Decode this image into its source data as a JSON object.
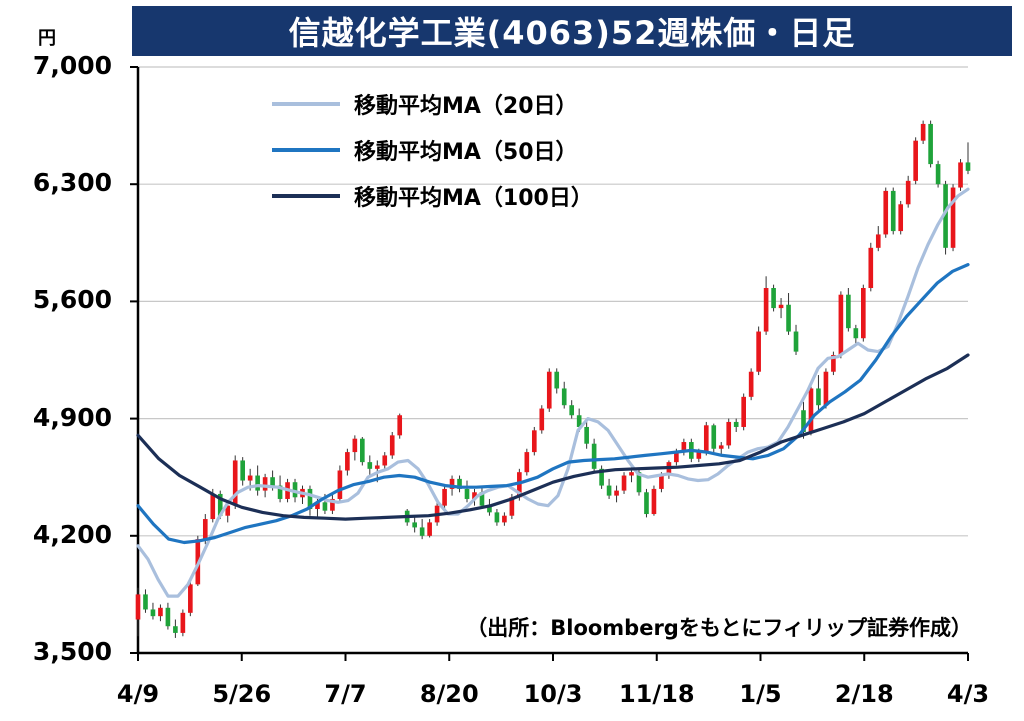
{
  "chart_data": {
    "type": "line",
    "title": "信越化学工業(4063)52週株価・日足",
    "unit_label": "円",
    "source_note": "（出所：Bloombergをもとにフィリップ証券作成）",
    "ylim": [
      3500,
      7000
    ],
    "y_ticks": [
      "3,500",
      "4,200",
      "4,900",
      "5,600",
      "6,300",
      "7,000"
    ],
    "y_tick_values": [
      3500,
      4200,
      4900,
      5600,
      6300,
      7000
    ],
    "grid": true,
    "legend_position": "top-left",
    "x_tick_labels": [
      "4/9",
      "5/26",
      "7/7",
      "8/20",
      "10/3",
      "11/18",
      "1/5",
      "2/18",
      "4/3"
    ],
    "candle_colors": {
      "up": "#e8161b",
      "down": "#1fa33a"
    },
    "candles": [
      [
        3700,
        3890,
        3600,
        3850
      ],
      [
        3850,
        3880,
        3740,
        3760
      ],
      [
        3760,
        3800,
        3700,
        3720
      ],
      [
        3720,
        3790,
        3690,
        3770
      ],
      [
        3770,
        3800,
        3640,
        3660
      ],
      [
        3660,
        3700,
        3590,
        3620
      ],
      [
        3620,
        3760,
        3600,
        3740
      ],
      [
        3740,
        3940,
        3720,
        3910
      ],
      [
        3910,
        4200,
        3900,
        4180
      ],
      [
        4180,
        4330,
        4150,
        4300
      ],
      [
        4300,
        4480,
        4280,
        4450
      ],
      [
        4450,
        4470,
        4300,
        4320
      ],
      [
        4320,
        4400,
        4280,
        4380
      ],
      [
        4380,
        4680,
        4360,
        4650
      ],
      [
        4650,
        4670,
        4500,
        4530
      ],
      [
        4530,
        4600,
        4470,
        4560
      ],
      [
        4560,
        4620,
        4440,
        4470
      ],
      [
        4470,
        4570,
        4430,
        4550
      ],
      [
        4550,
        4590,
        4470,
        4500
      ],
      [
        4500,
        4560,
        4400,
        4420
      ],
      [
        4420,
        4540,
        4400,
        4520
      ],
      [
        4520,
        4540,
        4400,
        4430
      ],
      [
        4430,
        4500,
        4390,
        4480
      ],
      [
        4480,
        4500,
        4320,
        4360
      ],
      [
        4360,
        4420,
        4300,
        4400
      ],
      [
        4400,
        4450,
        4330,
        4350
      ],
      [
        4350,
        4450,
        4330,
        4420
      ],
      [
        4420,
        4620,
        4400,
        4590
      ],
      [
        4590,
        4720,
        4560,
        4700
      ],
      [
        4700,
        4800,
        4650,
        4780
      ],
      [
        4780,
        4790,
        4620,
        4640
      ],
      [
        4640,
        4680,
        4550,
        4600
      ],
      [
        4600,
        4650,
        4520,
        4620
      ],
      [
        4620,
        4700,
        4600,
        4680
      ],
      [
        4680,
        4820,
        4660,
        4800
      ],
      [
        4800,
        4930,
        4780,
        4920
      ],
      [
        4350,
        4360,
        4260,
        4280
      ],
      [
        4280,
        4320,
        4220,
        4250
      ],
      [
        4250,
        4300,
        4180,
        4200
      ],
      [
        4200,
        4300,
        4190,
        4280
      ],
      [
        4280,
        4400,
        4260,
        4380
      ],
      [
        4380,
        4500,
        4360,
        4480
      ],
      [
        4480,
        4560,
        4440,
        4540
      ],
      [
        4540,
        4560,
        4460,
        4480
      ],
      [
        4480,
        4530,
        4400,
        4420
      ],
      [
        4420,
        4480,
        4380,
        4460
      ],
      [
        4460,
        4500,
        4360,
        4380
      ],
      [
        4380,
        4420,
        4320,
        4340
      ],
      [
        4340,
        4360,
        4260,
        4280
      ],
      [
        4280,
        4340,
        4260,
        4320
      ],
      [
        4320,
        4450,
        4300,
        4430
      ],
      [
        4430,
        4600,
        4410,
        4580
      ],
      [
        4580,
        4720,
        4560,
        4700
      ],
      [
        4700,
        4850,
        4680,
        4830
      ],
      [
        4830,
        4980,
        4810,
        4960
      ],
      [
        4960,
        5200,
        4940,
        5180
      ],
      [
        5180,
        5200,
        5050,
        5080
      ],
      [
        5080,
        5120,
        4960,
        4980
      ],
      [
        4980,
        5010,
        4900,
        4920
      ],
      [
        4920,
        4960,
        4820,
        4850
      ],
      [
        4850,
        4880,
        4720,
        4750
      ],
      [
        4750,
        4780,
        4580,
        4600
      ],
      [
        4600,
        4620,
        4480,
        4500
      ],
      [
        4500,
        4540,
        4420,
        4440
      ],
      [
        4440,
        4500,
        4400,
        4470
      ],
      [
        4470,
        4580,
        4450,
        4560
      ],
      [
        4560,
        4620,
        4520,
        4580
      ],
      [
        4580,
        4600,
        4440,
        4460
      ],
      [
        4460,
        4480,
        4310,
        4330
      ],
      [
        4330,
        4500,
        4320,
        4480
      ],
      [
        4480,
        4580,
        4460,
        4560
      ],
      [
        4560,
        4650,
        4540,
        4640
      ],
      [
        4640,
        4720,
        4620,
        4700
      ],
      [
        4700,
        4780,
        4680,
        4760
      ],
      [
        4760,
        4780,
        4640,
        4660
      ],
      [
        4660,
        4720,
        4640,
        4700
      ],
      [
        4700,
        4880,
        4680,
        4860
      ],
      [
        4860,
        4870,
        4700,
        4720
      ],
      [
        4720,
        4760,
        4680,
        4740
      ],
      [
        4740,
        4900,
        4720,
        4880
      ],
      [
        4880,
        4900,
        4820,
        4850
      ],
      [
        4850,
        5050,
        4830,
        5030
      ],
      [
        5030,
        5200,
        5010,
        5180
      ],
      [
        5180,
        5450,
        5160,
        5420
      ],
      [
        5420,
        5750,
        5400,
        5680
      ],
      [
        5680,
        5700,
        5540,
        5560
      ],
      [
        5560,
        5620,
        5500,
        5580
      ],
      [
        5580,
        5650,
        5400,
        5420
      ],
      [
        5420,
        5460,
        5280,
        5300
      ],
      [
        4950,
        5000,
        4780,
        4820
      ],
      [
        4820,
        5100,
        4800,
        5080
      ],
      [
        5080,
        5160,
        4950,
        4980
      ],
      [
        4980,
        5200,
        4960,
        5180
      ],
      [
        5180,
        5300,
        5160,
        5280
      ],
      [
        5280,
        5660,
        5260,
        5640
      ],
      [
        5640,
        5680,
        5420,
        5440
      ],
      [
        5440,
        5460,
        5340,
        5380
      ],
      [
        5380,
        5700,
        5360,
        5680
      ],
      [
        5680,
        5950,
        5660,
        5920
      ],
      [
        5920,
        6050,
        5900,
        6000
      ],
      [
        6000,
        6280,
        5980,
        6260
      ],
      [
        6260,
        6280,
        6000,
        6020
      ],
      [
        6020,
        6200,
        6000,
        6180
      ],
      [
        6180,
        6350,
        6160,
        6320
      ],
      [
        6320,
        6580,
        6300,
        6560
      ],
      [
        6560,
        6680,
        6540,
        6660
      ],
      [
        6660,
        6680,
        6400,
        6420
      ],
      [
        6420,
        6440,
        6280,
        6300
      ],
      [
        6300,
        6320,
        5880,
        5920
      ],
      [
        5920,
        6300,
        5900,
        6280
      ],
      [
        6280,
        6450,
        6260,
        6430
      ],
      [
        6430,
        6550,
        6360,
        6380
      ]
    ],
    "series": [
      {
        "name": "移動平均MA（20日）",
        "color": "#a9bfdd",
        "values": [
          4140,
          4060,
          3940,
          3840,
          3840,
          3910,
          4030,
          4160,
          4300,
          4400,
          4460,
          4490,
          4500,
          4495,
          4490,
          4475,
          4460,
          4448,
          4430,
          4410,
          4400,
          4410,
          4455,
          4550,
          4580,
          4600,
          4640,
          4650,
          4600,
          4510,
          4400,
          4330,
          4330,
          4380,
          4440,
          4470,
          4490,
          4500,
          4460,
          4420,
          4390,
          4380,
          4440,
          4600,
          4830,
          4900,
          4880,
          4830,
          4740,
          4650,
          4570,
          4550,
          4560,
          4570,
          4560,
          4540,
          4530,
          4535,
          4570,
          4620,
          4660,
          4700,
          4720,
          4730,
          4760,
          4850,
          4960,
          5070,
          5200,
          5260,
          5270,
          5310,
          5350,
          5310,
          5300,
          5330,
          5470,
          5630,
          5800,
          5940,
          6060,
          6160,
          6230,
          6270
        ]
      },
      {
        "name": "移動平均MA（50日）",
        "color": "#1f75c1",
        "values": [
          4380,
          4270,
          4180,
          4160,
          4170,
          4190,
          4220,
          4250,
          4270,
          4290,
          4320,
          4360,
          4420,
          4470,
          4505,
          4525,
          4550,
          4560,
          4550,
          4520,
          4500,
          4490,
          4490,
          4495,
          4500,
          4520,
          4550,
          4600,
          4640,
          4650,
          4655,
          4660,
          4670,
          4680,
          4690,
          4700,
          4710,
          4700,
          4680,
          4670,
          4660,
          4680,
          4720,
          4800,
          4920,
          5000,
          5060,
          5130,
          5250,
          5390,
          5510,
          5610,
          5710,
          5780,
          5820
        ]
      },
      {
        "name": "移動平均MA（100日）",
        "color": "#1c2f56",
        "values": [
          4800,
          4660,
          4560,
          4490,
          4420,
          4370,
          4340,
          4320,
          4310,
          4305,
          4300,
          4305,
          4310,
          4315,
          4320,
          4335,
          4355,
          4380,
          4420,
          4470,
          4520,
          4555,
          4580,
          4595,
          4600,
          4605,
          4610,
          4620,
          4630,
          4650,
          4700,
          4760,
          4800,
          4840,
          4880,
          4930,
          5000,
          5070,
          5140,
          5200,
          5280
        ]
      }
    ]
  }
}
